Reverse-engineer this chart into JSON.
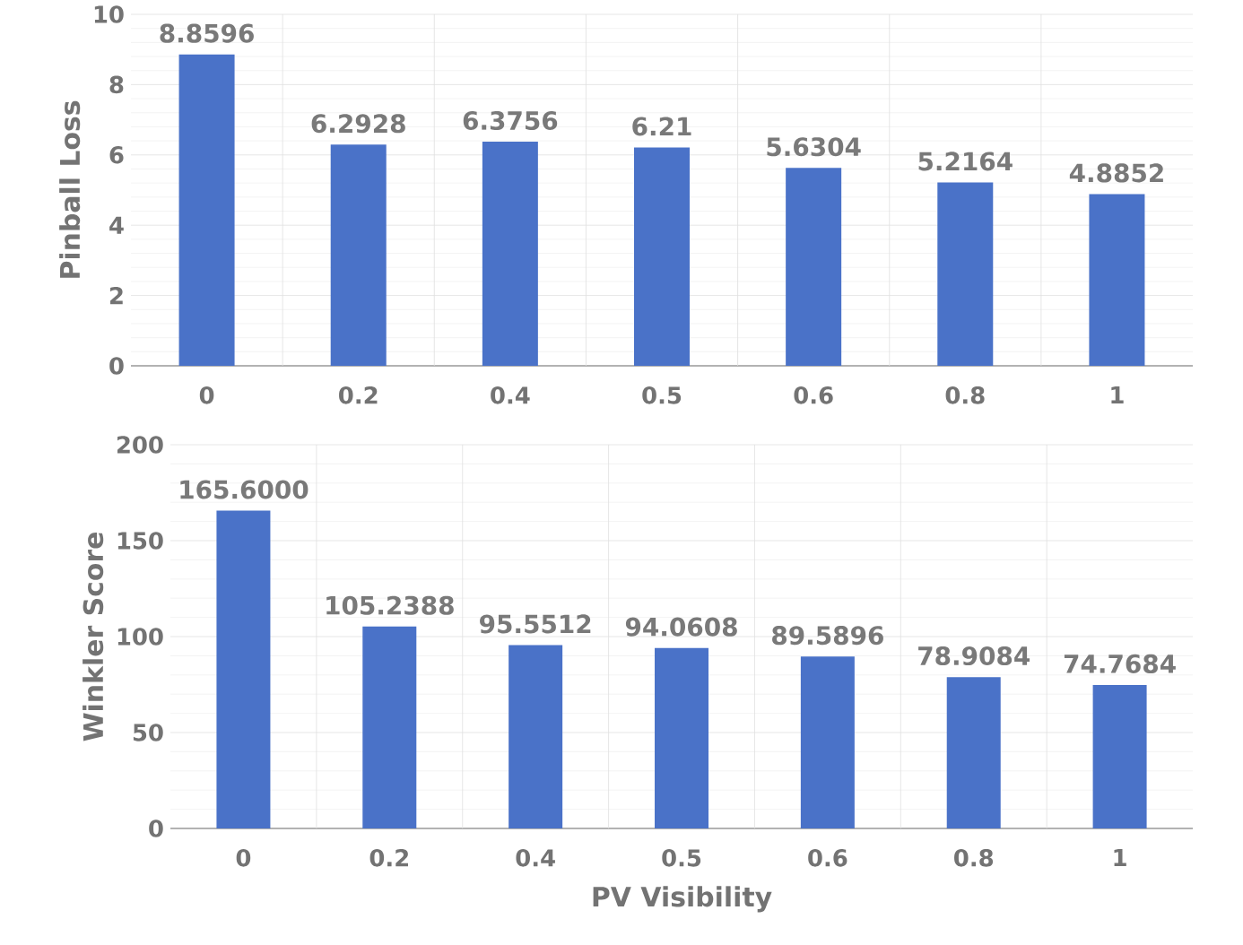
{
  "chart_data": [
    {
      "type": "bar",
      "ylabel": "Pinball Loss",
      "categories": [
        "0",
        "0.2",
        "0.4",
        "0.5",
        "0.6",
        "0.8",
        "1"
      ],
      "values": [
        8.8596,
        6.2928,
        6.3756,
        6.21,
        5.6304,
        5.2164,
        4.8852
      ],
      "color": "#4a72c8",
      "ylim": [
        0,
        10
      ],
      "yticks": [
        0,
        2,
        4,
        6,
        8,
        10
      ],
      "grid": true,
      "data_labels": true
    },
    {
      "type": "bar",
      "xlabel": "PV Visibility",
      "ylabel": "Winkler Score",
      "categories": [
        "0",
        "0.2",
        "0.4",
        "0.5",
        "0.6",
        "0.8",
        "1"
      ],
      "values": [
        165.6,
        105.2388,
        95.5512,
        94.0608,
        89.5896,
        78.9084,
        74.7684
      ],
      "value_labels": [
        "165.6000",
        "105.2388",
        "95.5512",
        "94.0608",
        "89.5896",
        "78.9084",
        "74.7684"
      ],
      "color": "#4a72c8",
      "ylim": [
        0,
        200
      ],
      "yticks": [
        0,
        50,
        100,
        150,
        200
      ],
      "grid": true
    }
  ]
}
